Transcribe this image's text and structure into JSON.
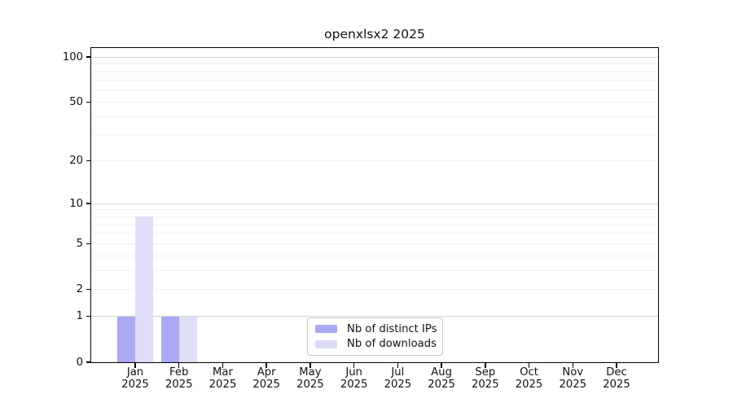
{
  "figure": {
    "title": "openxlsx2 2025"
  },
  "chart_data": {
    "type": "bar",
    "title": "openxlsx2 2025",
    "x_months": [
      "Jan",
      "Feb",
      "Mar",
      "Apr",
      "May",
      "Jun",
      "Jul",
      "Aug",
      "Sep",
      "Oct",
      "Nov",
      "Dec"
    ],
    "x_year": "2025",
    "series": [
      {
        "name": "Nb of distinct IPs",
        "color": "#a9a9f6",
        "values": [
          1,
          1,
          0,
          0,
          0,
          0,
          0,
          0,
          0,
          0,
          0,
          0
        ]
      },
      {
        "name": "Nb of downloads",
        "color": "#dbdbf8",
        "values": [
          8,
          1,
          0,
          0,
          0,
          0,
          0,
          0,
          0,
          0,
          0,
          0
        ]
      }
    ],
    "yscale": "log10(value+1)",
    "ylim": [
      0,
      113
    ],
    "y_tick_values": [
      0,
      1,
      2,
      5,
      10,
      20,
      50,
      100
    ],
    "y_gridlines_major": [
      1,
      10,
      100
    ],
    "y_gridlines_minor": [
      2,
      3,
      4,
      5,
      6,
      7,
      8,
      9,
      20,
      30,
      40,
      50,
      60,
      70,
      80,
      90
    ],
    "grid": "horizontal",
    "legend_position": "lower-center-inside"
  },
  "colors": {
    "bar_distinct_ips": "#a9a9f6",
    "bar_downloads": "#dbdbf8",
    "grid_major": "#d4d4d4",
    "grid_minor": "#f0f0f0",
    "axis": "#000000",
    "legend_border": "#c9c9c9"
  }
}
